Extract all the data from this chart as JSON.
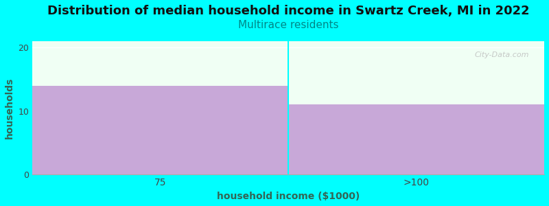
{
  "title": "Distribution of median household income in Swartz Creek, MI in 2022",
  "subtitle": "Multirace residents",
  "xlabel": "household income ($1000)",
  "ylabel": "households",
  "categories": [
    "75",
    ">100"
  ],
  "values": [
    14,
    11
  ],
  "bar_color": "#c8a8d8",
  "background_color": "#00FFFF",
  "plot_bg_color": "#f0fff4",
  "title_fontsize": 13,
  "subtitle_fontsize": 11,
  "subtitle_color": "#008888",
  "ylabel_color": "#336655",
  "xlabel_color": "#336655",
  "ylim": [
    0,
    21
  ],
  "yticks": [
    0,
    10,
    20
  ],
  "watermark": "City-Data.com",
  "separator_color": "#00FFFF",
  "axis_color": "#aaaaaa"
}
